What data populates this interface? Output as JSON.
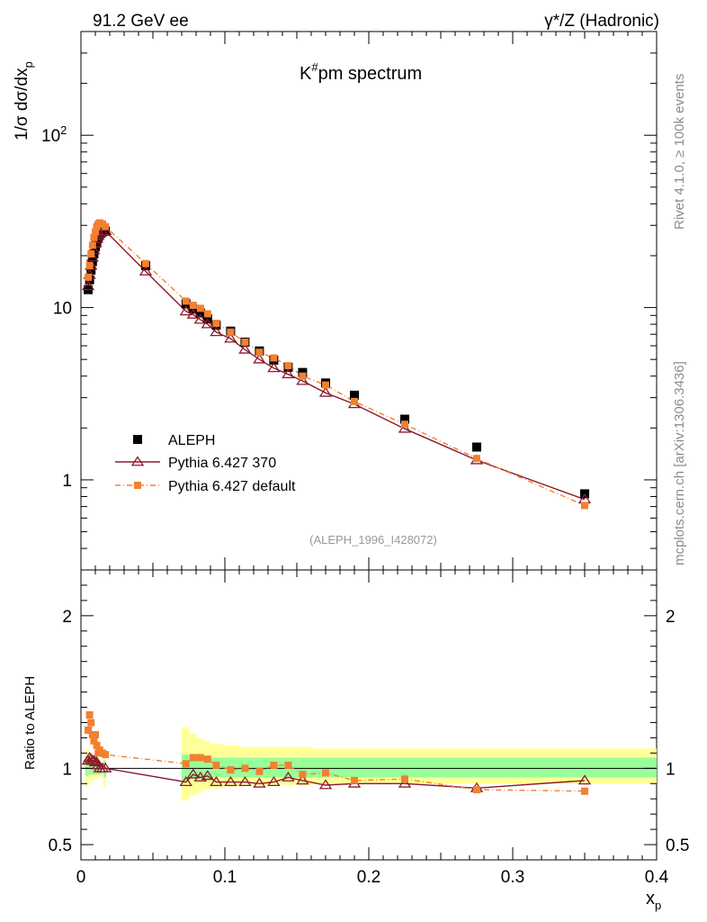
{
  "header": {
    "left": "91.2 GeV ee",
    "right": "γ*/Z (Hadronic)"
  },
  "plot_title": "K#pm spectrum",
  "plot_title_parts": {
    "base": "K",
    "sup": "#",
    "rest": "pm spectrum"
  },
  "reference": "(ALEPH_1996_I428072)",
  "side_labels": {
    "rivet": "Rivet 4.1.0, ≥ 100k events",
    "mcplots": "mcplots.cern.ch [arXiv:1306.3436]"
  },
  "axes": {
    "ylabel_main": "1/σ  dσ/dx",
    "ylabel_main_sub": "p",
    "ylabel_ratio": "Ratio to ALEPH",
    "xlabel": "x",
    "xlabel_sub": "p"
  },
  "colors": {
    "aleph": "#000000",
    "p370": "#8b1a2b",
    "pdef": "#f28030",
    "band_outer": "#ffff99",
    "band_inner": "#99ff99"
  },
  "chart_data": {
    "type": "scatter",
    "title": "K#pm spectrum",
    "xlim": [
      0,
      0.4
    ],
    "ylim_main": [
      0.3,
      400
    ],
    "yscale_main": "log",
    "ylim_ratio": [
      0.4,
      2.3
    ],
    "x_ticks": [
      "0",
      "0.1",
      "0.2",
      "0.3",
      "0.4"
    ],
    "x_tick_values": [
      0,
      0.1,
      0.2,
      0.3,
      0.4
    ],
    "y_ticks_main": [
      {
        "v": 1,
        "label": "1"
      },
      {
        "v": 10,
        "label": "10"
      },
      {
        "v": 100,
        "label": "10",
        "sup": "2"
      }
    ],
    "y_ticks_ratio": [
      {
        "v": 0.5,
        "label": "0.5"
      },
      {
        "v": 1,
        "label": "1"
      },
      {
        "v": 2,
        "label": "2"
      }
    ],
    "legend": [
      "ALEPH",
      "Pythia 6.427 370",
      "Pythia 6.427 default"
    ],
    "legend_position": "bottom-left",
    "series": [
      {
        "name": "ALEPH",
        "marker": "square",
        "x": [
          0.005,
          0.006,
          0.007,
          0.008,
          0.009,
          0.01,
          0.011,
          0.012,
          0.013,
          0.015,
          0.017,
          0.045,
          0.073,
          0.078,
          0.083,
          0.088,
          0.094,
          0.104,
          0.114,
          0.124,
          0.134,
          0.144,
          0.154,
          0.17,
          0.19,
          0.225,
          0.275,
          0.35
        ],
        "y": [
          12.7,
          14.5,
          16.5,
          18.5,
          20.5,
          22.5,
          24.0,
          25.5,
          26.8,
          27.5,
          27.8,
          17.5,
          10.5,
          9.8,
          9.3,
          8.6,
          7.9,
          7.3,
          6.3,
          5.6,
          4.95,
          4.5,
          4.2,
          3.65,
          3.1,
          2.25,
          1.55,
          0.83
        ]
      },
      {
        "name": "Pythia 6.427 370",
        "marker": "open-triangle",
        "x": [
          0.005,
          0.006,
          0.007,
          0.008,
          0.009,
          0.01,
          0.011,
          0.012,
          0.013,
          0.015,
          0.017,
          0.045,
          0.073,
          0.078,
          0.083,
          0.088,
          0.094,
          0.104,
          0.114,
          0.124,
          0.134,
          0.144,
          0.154,
          0.17,
          0.19,
          0.225,
          0.275,
          0.35
        ],
        "y": [
          13.3,
          15.5,
          17.5,
          19.5,
          21.5,
          23.5,
          25.0,
          26.0,
          26.8,
          27.5,
          27.8,
          16.2,
          9.5,
          9.1,
          8.5,
          8.0,
          7.2,
          6.6,
          5.7,
          5.0,
          4.45,
          4.1,
          3.75,
          3.2,
          2.75,
          1.98,
          1.3,
          0.77
        ]
      },
      {
        "name": "Pythia 6.427 default",
        "marker": "filled-square",
        "x": [
          0.005,
          0.006,
          0.007,
          0.008,
          0.009,
          0.01,
          0.011,
          0.012,
          0.013,
          0.015,
          0.017,
          0.045,
          0.073,
          0.078,
          0.083,
          0.088,
          0.094,
          0.104,
          0.114,
          0.124,
          0.134,
          0.144,
          0.154,
          0.17,
          0.19,
          0.225,
          0.275,
          0.35
        ],
        "y": [
          15.0,
          17.5,
          20.5,
          23.0,
          25.5,
          27.5,
          29.5,
          30.5,
          31.0,
          30.5,
          29.5,
          18.0,
          10.9,
          10.3,
          9.9,
          9.2,
          8.1,
          7.2,
          6.3,
          5.5,
          5.1,
          4.6,
          4.0,
          3.55,
          2.85,
          2.1,
          1.33,
          0.71
        ]
      }
    ],
    "ratio_series": [
      {
        "name": "Pythia 6.427 370",
        "x": [
          0.005,
          0.006,
          0.007,
          0.008,
          0.009,
          0.01,
          0.011,
          0.012,
          0.013,
          0.015,
          0.017,
          0.073,
          0.078,
          0.083,
          0.088,
          0.094,
          0.104,
          0.114,
          0.124,
          0.134,
          0.144,
          0.154,
          0.17,
          0.19,
          0.225,
          0.275,
          0.35
        ],
        "y": [
          1.05,
          1.07,
          1.06,
          1.05,
          1.05,
          1.04,
          1.04,
          1.02,
          1.0,
          1.0,
          1.0,
          0.91,
          0.96,
          0.94,
          0.95,
          0.91,
          0.91,
          0.91,
          0.9,
          0.91,
          0.94,
          0.92,
          0.89,
          0.9,
          0.9,
          0.87,
          0.92
        ]
      },
      {
        "name": "Pythia 6.427 default",
        "x": [
          0.005,
          0.006,
          0.007,
          0.008,
          0.009,
          0.01,
          0.011,
          0.012,
          0.013,
          0.015,
          0.017,
          0.073,
          0.078,
          0.083,
          0.088,
          0.094,
          0.104,
          0.114,
          0.124,
          0.134,
          0.144,
          0.154,
          0.17,
          0.19,
          0.225,
          0.275,
          0.35
        ],
        "y": [
          1.25,
          1.35,
          1.3,
          1.22,
          1.18,
          1.22,
          1.15,
          1.1,
          1.12,
          1.1,
          1.09,
          1.03,
          1.07,
          1.07,
          1.06,
          1.02,
          0.99,
          1.0,
          0.98,
          1.02,
          1.02,
          0.96,
          0.97,
          0.92,
          0.93,
          0.86,
          0.85
        ]
      }
    ],
    "uncertainty_bands": {
      "outer": [
        {
          "x0": 0.003,
          "x1": 0.0055,
          "lo": 0.88,
          "hi": 1.12
        },
        {
          "x0": 0.0055,
          "x1": 0.0065,
          "lo": 0.9,
          "hi": 1.1
        },
        {
          "x0": 0.0065,
          "x1": 0.0075,
          "lo": 0.91,
          "hi": 1.09
        },
        {
          "x0": 0.0075,
          "x1": 0.0095,
          "lo": 0.92,
          "hi": 1.08
        },
        {
          "x0": 0.0095,
          "x1": 0.0125,
          "lo": 0.93,
          "hi": 1.07
        },
        {
          "x0": 0.0125,
          "x1": 0.0145,
          "lo": 0.94,
          "hi": 1.06
        },
        {
          "x0": 0.0155,
          "x1": 0.0175,
          "lo": 0.88,
          "hi": 1.1
        },
        {
          "x0": 0.07,
          "x1": 0.075,
          "lo": 0.79,
          "hi": 1.27
        },
        {
          "x0": 0.075,
          "x1": 0.08,
          "lo": 0.82,
          "hi": 1.23
        },
        {
          "x0": 0.08,
          "x1": 0.085,
          "lo": 0.84,
          "hi": 1.2
        },
        {
          "x0": 0.085,
          "x1": 0.09,
          "lo": 0.86,
          "hi": 1.18
        },
        {
          "x0": 0.09,
          "x1": 0.1,
          "lo": 0.87,
          "hi": 1.16
        },
        {
          "x0": 0.1,
          "x1": 0.11,
          "lo": 0.88,
          "hi": 1.15
        },
        {
          "x0": 0.11,
          "x1": 0.16,
          "lo": 0.89,
          "hi": 1.14
        },
        {
          "x0": 0.16,
          "x1": 0.4,
          "lo": 0.9,
          "hi": 1.13
        }
      ],
      "inner": [
        {
          "x0": 0.003,
          "x1": 0.0055,
          "lo": 0.95,
          "hi": 1.05
        },
        {
          "x0": 0.0055,
          "x1": 0.0125,
          "lo": 0.96,
          "hi": 1.04
        },
        {
          "x0": 0.0125,
          "x1": 0.0145,
          "lo": 0.96,
          "hi": 1.04
        },
        {
          "x0": 0.0155,
          "x1": 0.0175,
          "lo": 0.94,
          "hi": 1.05
        },
        {
          "x0": 0.07,
          "x1": 0.075,
          "lo": 0.92,
          "hi": 1.09
        },
        {
          "x0": 0.075,
          "x1": 0.09,
          "lo": 0.93,
          "hi": 1.08
        },
        {
          "x0": 0.09,
          "x1": 0.4,
          "lo": 0.94,
          "hi": 1.07
        }
      ]
    }
  }
}
